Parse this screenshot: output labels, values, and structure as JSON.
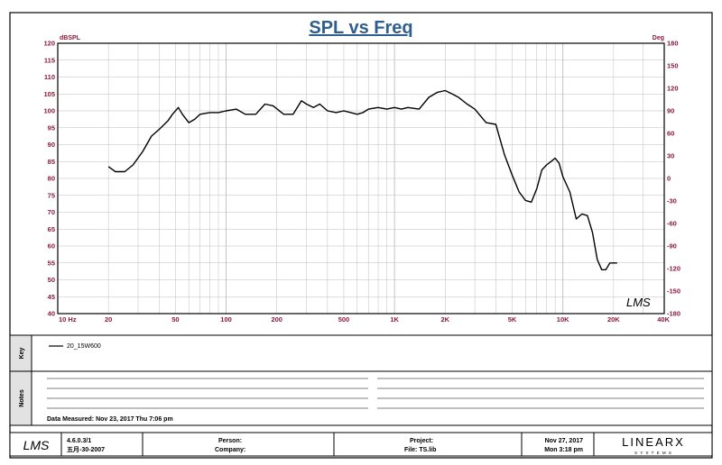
{
  "chart_data": {
    "type": "line",
    "title": "SPL vs Freq",
    "y_unit_left": "dBSPL",
    "y_unit_right": "Deg",
    "x_scale": "log",
    "x_range": [
      10,
      40000
    ],
    "ylim_left": [
      40,
      120
    ],
    "ylim_right": [
      -180,
      180
    ],
    "grid": true,
    "x_ticks": [
      {
        "value": 10,
        "label": "10  Hz"
      },
      {
        "value": 20,
        "label": "20"
      },
      {
        "value": 50,
        "label": "50"
      },
      {
        "value": 100,
        "label": "100"
      },
      {
        "value": 200,
        "label": "200"
      },
      {
        "value": 500,
        "label": "500"
      },
      {
        "value": 1000,
        "label": "1K"
      },
      {
        "value": 2000,
        "label": "2K"
      },
      {
        "value": 5000,
        "label": "5K"
      },
      {
        "value": 10000,
        "label": "10K"
      },
      {
        "value": 20000,
        "label": "20K"
      },
      {
        "value": 40000,
        "label": "40K"
      }
    ],
    "y_ticks_left": [
      120,
      115,
      110,
      105,
      100,
      95,
      90,
      85,
      80,
      75,
      70,
      65,
      60,
      55,
      50,
      45,
      40
    ],
    "y_ticks_right": [
      180,
      150,
      120,
      90,
      60,
      30,
      0,
      -30,
      -60,
      -90,
      -120,
      -150,
      -180
    ],
    "series": [
      {
        "name": "20_15W600",
        "color": "#000000",
        "x": [
          20,
          22,
          25,
          28,
          32,
          36,
          40,
          45,
          48,
          52,
          55,
          60,
          65,
          70,
          80,
          90,
          100,
          115,
          130,
          150,
          170,
          190,
          220,
          250,
          280,
          300,
          330,
          360,
          400,
          450,
          500,
          550,
          600,
          650,
          700,
          800,
          900,
          1000,
          1100,
          1200,
          1400,
          1600,
          1800,
          2000,
          2200,
          2400,
          2700,
          3000,
          3500,
          4000,
          4500,
          5000,
          5500,
          6000,
          6500,
          7000,
          7500,
          8000,
          8500,
          9000,
          9500,
          10000,
          11000,
          12000,
          13000,
          14000,
          15000,
          16000,
          17000,
          18000,
          19000,
          20000,
          21000
        ],
        "y": [
          83.5,
          82,
          82,
          84,
          88,
          92.5,
          94.5,
          97,
          99,
          101,
          99,
          96.5,
          97.5,
          99,
          99.5,
          99.5,
          100,
          100.5,
          99,
          99,
          102,
          101.5,
          99,
          99,
          103,
          102,
          101,
          102,
          100,
          99.5,
          100,
          99.5,
          99,
          99.5,
          100.5,
          101,
          100.5,
          101,
          100.5,
          101,
          100.5,
          104,
          105.5,
          106,
          105,
          104,
          102,
          100.5,
          96.5,
          96,
          87,
          81,
          76,
          73.5,
          73,
          77,
          82.5,
          84,
          85,
          86,
          84.5,
          80.5,
          76,
          68,
          69.5,
          69,
          64,
          56,
          53,
          53,
          55,
          55,
          55
        ]
      }
    ]
  },
  "legend": {
    "side_label": "Key",
    "entries": [
      {
        "label": "20_15W600"
      }
    ]
  },
  "notes": {
    "side_label": "Notes",
    "data_measured": "Data Measured: Nov 23, 2017  Thu  7:06 pm"
  },
  "watermark": "LMS",
  "footer": {
    "logo": "LMS",
    "version": "4.6.0.3/1",
    "version_date": "五月-30-2007",
    "person_label": "Person:",
    "company_label": "Company:",
    "project_label": "Project:",
    "file_label": "File: TS.lib",
    "date": "Nov 27, 2017",
    "time": "Mon  3:18 pm",
    "brand": "LINEARX",
    "brand_sub": "S Y S T E M S"
  },
  "colors": {
    "title": "#2e5f8f",
    "axis_labels": "#8b1a3a",
    "grid": "#bdbdbd",
    "frame": "#000000"
  }
}
